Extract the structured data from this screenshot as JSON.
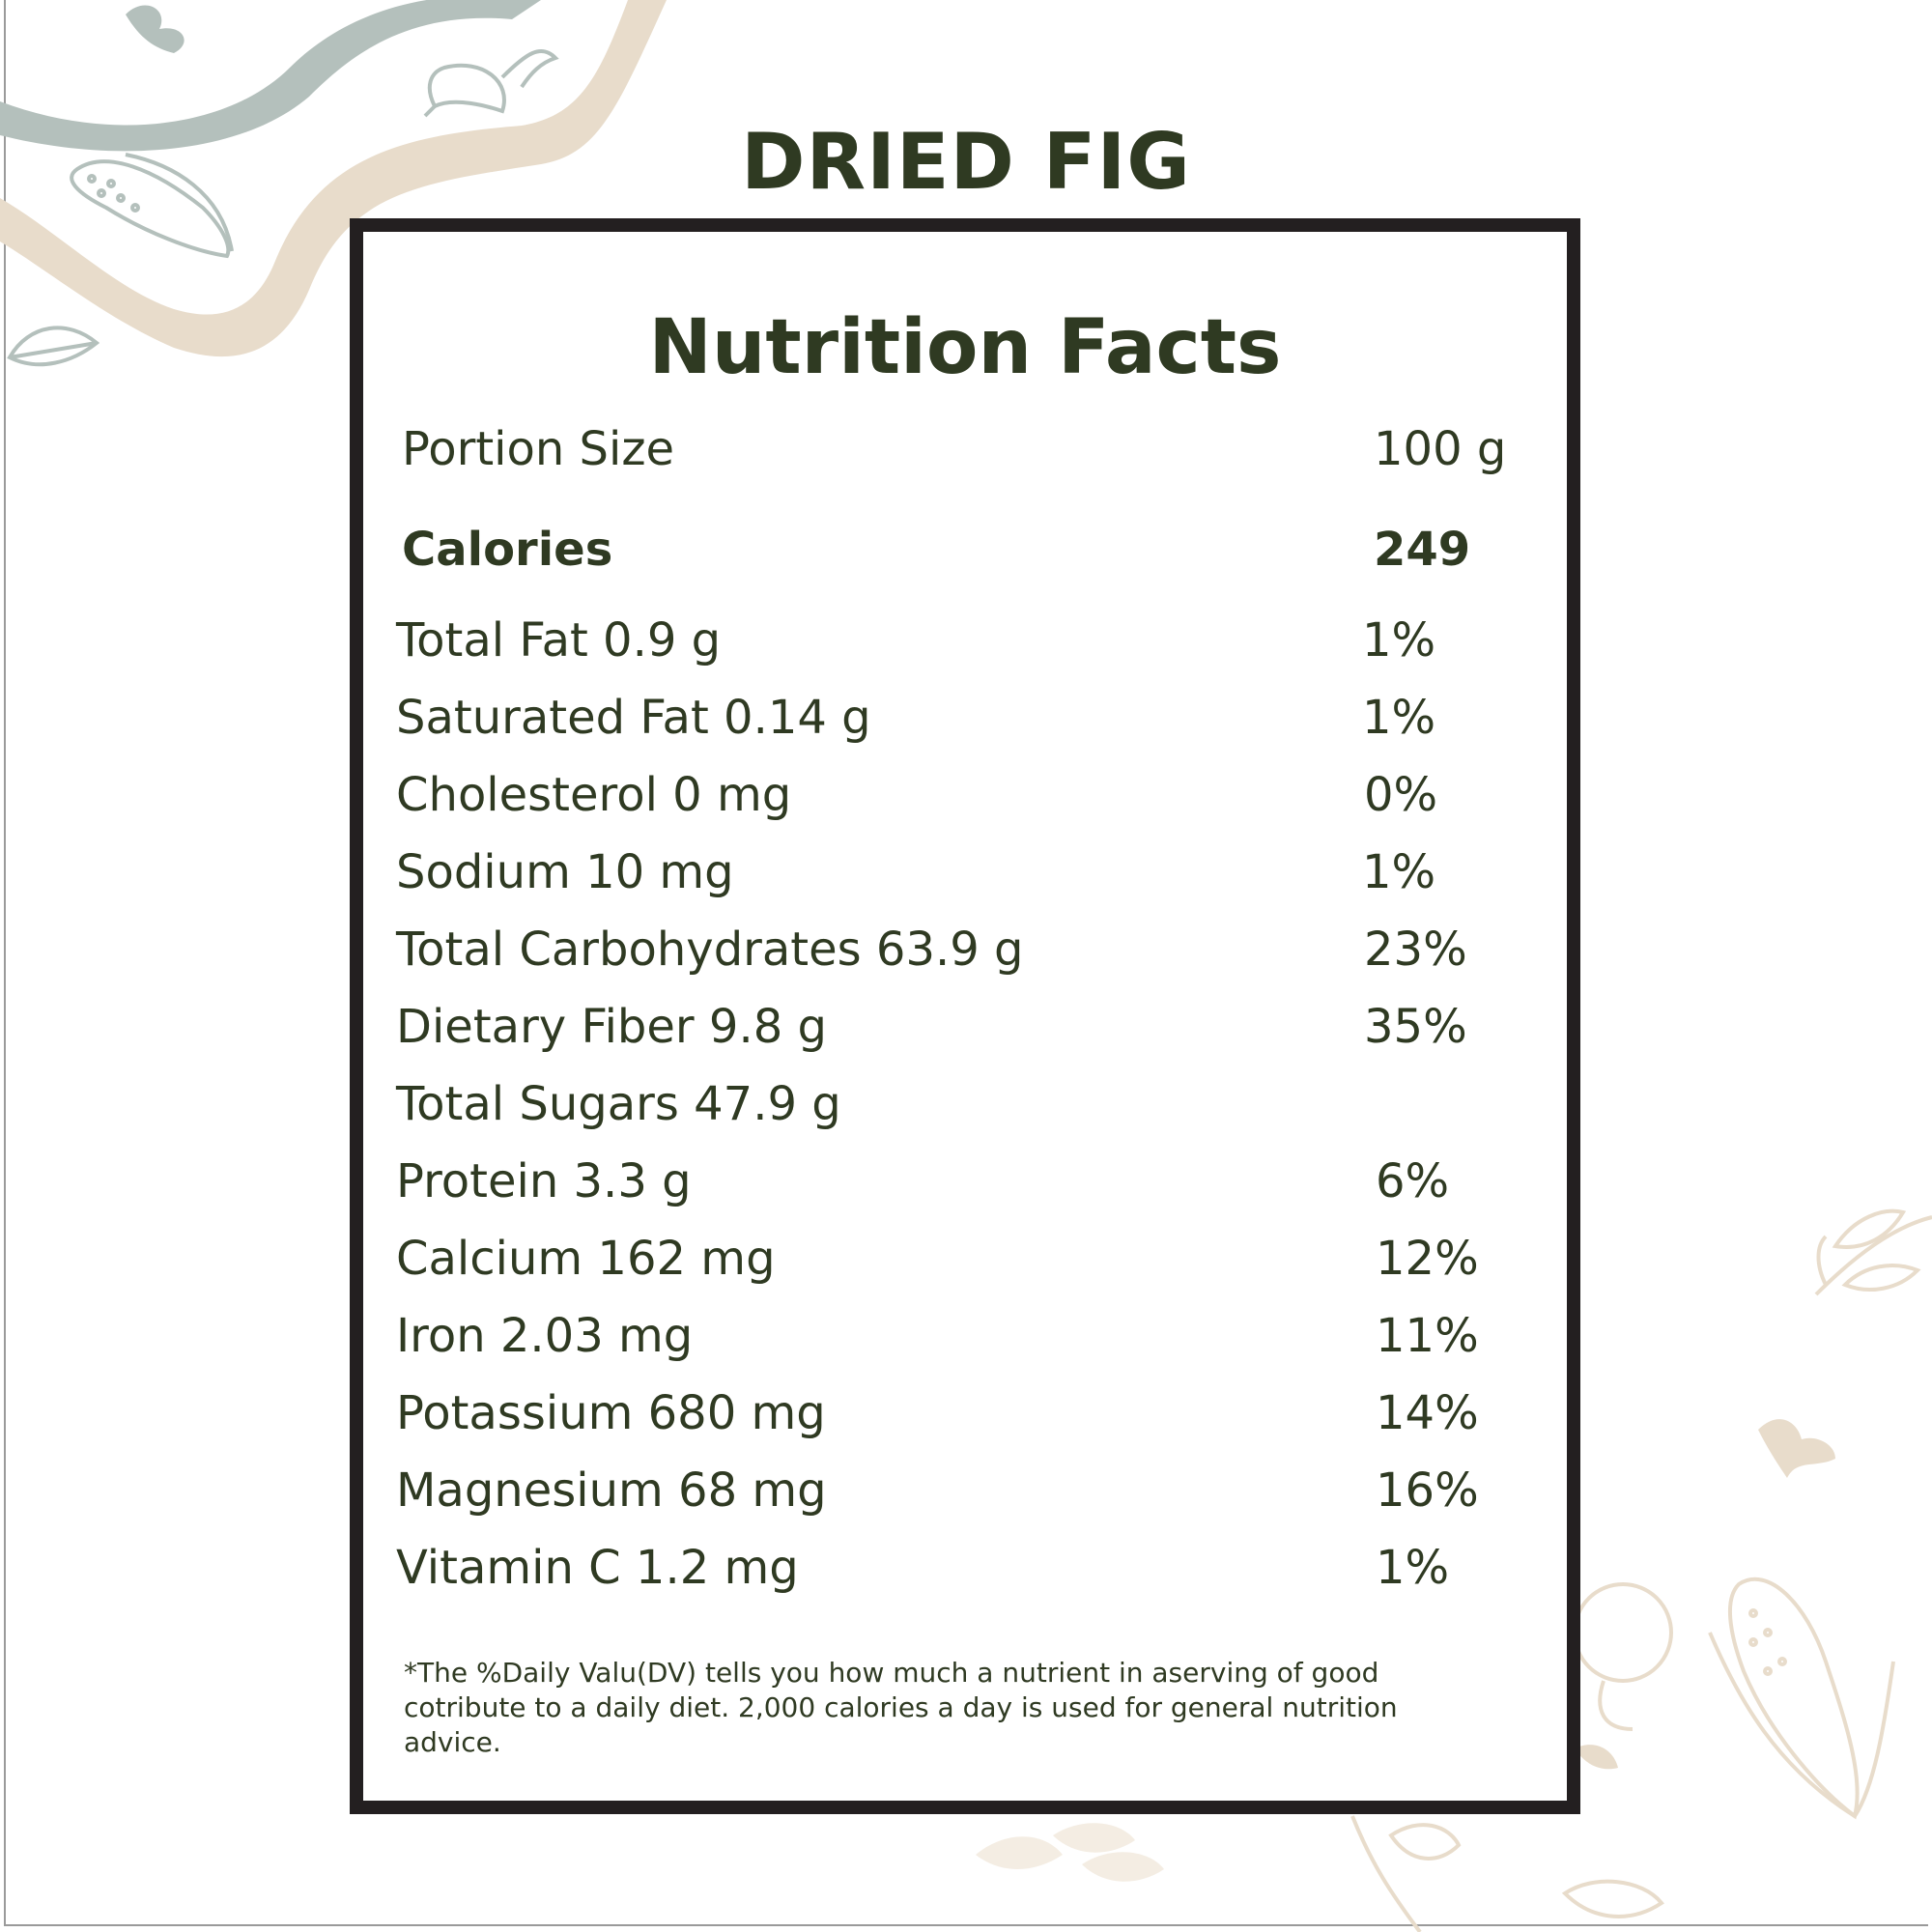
{
  "product": {
    "title": "DRIED FIG"
  },
  "panel": {
    "heading": "Nutrition Facts",
    "portion": {
      "label": "Portion Size",
      "value": "100 g"
    },
    "calories": {
      "label": "Calories",
      "value": "249"
    },
    "nutrients": [
      {
        "label": "Total Fat 0.9 g",
        "dv": "1%"
      },
      {
        "label": "Saturated Fat 0.14 g",
        "dv": "1%"
      },
      {
        "label": "Cholesterol 0 mg",
        "dv": "0%"
      },
      {
        "label": "Sodium 10 mg",
        "dv": "1%"
      },
      {
        "label": "Total Carbohydrates 63.9 g",
        "dv": "23%"
      },
      {
        "label": "Dietary Fiber 9.8 g",
        "dv": "35%"
      },
      {
        "label": "Total Sugars 47.9 g",
        "dv": ""
      },
      {
        "label": "Protein 3.3 g",
        "dv": "6%"
      },
      {
        "label": "Calcium 162 mg",
        "dv": "12%"
      },
      {
        "label": "Iron  2.03 mg",
        "dv": "11%"
      },
      {
        "label": "Potassium 680 mg",
        "dv": "14%"
      },
      {
        "label": "Magnesium 68 mg",
        "dv": "16%"
      },
      {
        "label": "Vitamin C 1.2 mg",
        "dv": "1%"
      }
    ],
    "footnote": "*The %Daily Valu(DV) tells you how much a nutrient in aserving of good cotribute to a daily diet. 2,000 calories a day is used for general nutrition advice."
  },
  "colors": {
    "text": "#2f3a22",
    "border": "#231f20",
    "deco_sage": "#b4c0bc",
    "deco_sand": "#e8dccb"
  },
  "icons": [
    "corn-icon",
    "radish-icon",
    "leaf-icon",
    "herb-sprig-icon",
    "apple-icon",
    "wheat-icon"
  ]
}
